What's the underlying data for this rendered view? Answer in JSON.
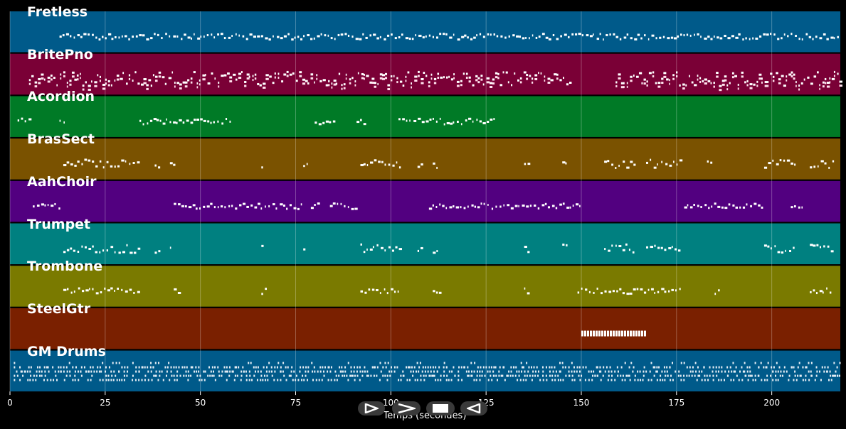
{
  "chart_data": {
    "type": "piano-roll",
    "xlabel": "Temps (secondes)",
    "xlim": [
      0,
      218
    ],
    "x_ticks": [
      "0",
      "25",
      "50",
      "75",
      "100",
      "125",
      "150",
      "175",
      "200"
    ],
    "x_tick_values": [
      0,
      25,
      50,
      75,
      100,
      125,
      150,
      175,
      200
    ],
    "grid": true,
    "tracks": [
      {
        "name": "Fretless",
        "color": "#005a8a",
        "segments": [
          [
            13,
            218
          ]
        ],
        "style": "line"
      },
      {
        "name": "BritePno",
        "color": "#7a0036",
        "segments": [
          [
            5,
            147
          ],
          [
            159,
            218
          ]
        ],
        "style": "dense"
      },
      {
        "name": "Acordion",
        "color": "#007a26",
        "segments": [
          [
            2,
            5
          ],
          [
            13,
            15
          ],
          [
            34,
            58
          ],
          [
            80,
            85
          ],
          [
            91,
            93
          ],
          [
            102,
            127
          ]
        ],
        "style": "line"
      },
      {
        "name": "BrasSect",
        "color": "#7a5200",
        "segments": [
          [
            14,
            34
          ],
          [
            38,
            39
          ],
          [
            42,
            43
          ],
          [
            66,
            67
          ],
          [
            77,
            78
          ],
          [
            92,
            103
          ],
          [
            107,
            108
          ],
          [
            111,
            112
          ],
          [
            135,
            136
          ],
          [
            145,
            146
          ],
          [
            156,
            164
          ],
          [
            167,
            176
          ],
          [
            183,
            184
          ],
          [
            198,
            206
          ],
          [
            210,
            216
          ]
        ],
        "style": "sparse"
      },
      {
        "name": "AahChoir",
        "color": "#520080",
        "segments": [
          [
            6,
            13
          ],
          [
            43,
            77
          ],
          [
            79,
            81
          ],
          [
            84,
            91
          ],
          [
            110,
            150
          ],
          [
            177,
            198
          ],
          [
            205,
            208
          ]
        ],
        "style": "line"
      },
      {
        "name": "Trumpet",
        "color": "#008080",
        "segments": [
          [
            14,
            34
          ],
          [
            38,
            39
          ],
          [
            42,
            43
          ],
          [
            66,
            67
          ],
          [
            77,
            78
          ],
          [
            92,
            103
          ],
          [
            107,
            108
          ],
          [
            111,
            112
          ],
          [
            135,
            136
          ],
          [
            145,
            146
          ],
          [
            156,
            164
          ],
          [
            167,
            176
          ],
          [
            198,
            206
          ],
          [
            210,
            216
          ]
        ],
        "style": "sparse"
      },
      {
        "name": "Trombone",
        "color": "#7a7a00",
        "segments": [
          [
            14,
            34
          ],
          [
            43,
            45
          ],
          [
            66,
            67
          ],
          [
            92,
            102
          ],
          [
            111,
            113
          ],
          [
            135,
            136
          ],
          [
            149,
            176
          ],
          [
            185,
            186
          ],
          [
            210,
            216
          ]
        ],
        "style": "line"
      },
      {
        "name": "SteelGtr",
        "color": "#7a2000",
        "segments": [
          [
            150,
            167
          ]
        ],
        "style": "block"
      },
      {
        "name": "GM Drums",
        "color": "#005a8a",
        "segments": [
          [
            1,
            218
          ]
        ],
        "style": "drums"
      }
    ]
  },
  "controls": [
    {
      "name": "step-forward",
      "icon": "step-forward-icon"
    },
    {
      "name": "play",
      "icon": "play-icon"
    },
    {
      "name": "stop",
      "icon": "stop-icon"
    },
    {
      "name": "step-back",
      "icon": "step-back-icon"
    }
  ]
}
